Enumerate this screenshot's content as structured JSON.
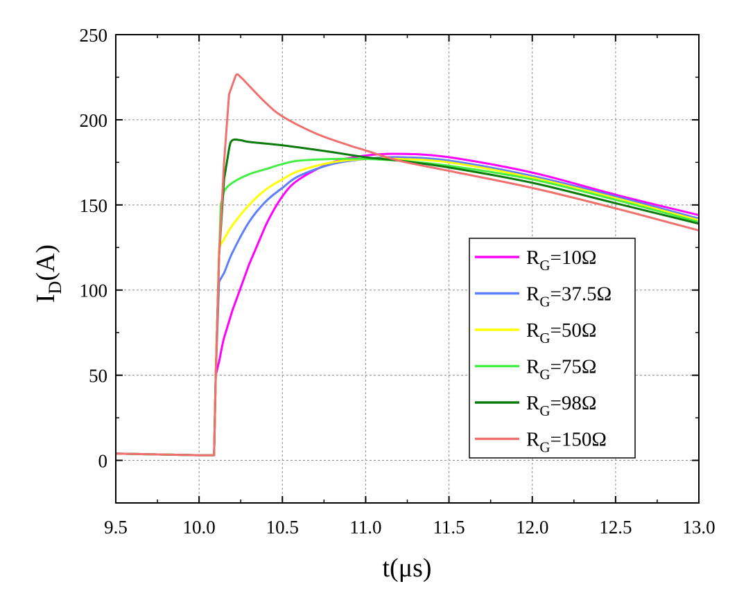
{
  "chart_data": {
    "type": "line",
    "xlabel": "t(μs)",
    "ylabel_main": "I",
    "ylabel_sub": "D",
    "ylabel_tail": "(A)",
    "xlim": [
      9.5,
      13.0
    ],
    "ylim": [
      -25,
      250
    ],
    "xticks": [
      "9.5",
      "10.0",
      "10.5",
      "11.0",
      "11.5",
      "12.0",
      "12.5",
      "13.0"
    ],
    "yticks": [
      "0",
      "50",
      "100",
      "150",
      "200",
      "250"
    ],
    "grid": true,
    "legend_position": "bottom-right",
    "series": [
      {
        "label_main": "R",
        "label_sub": "G",
        "label_tail": "=10Ω",
        "color": "#ff00ff",
        "x": [
          9.5,
          10.0,
          10.09,
          10.1,
          10.12,
          10.15,
          10.2,
          10.3,
          10.4,
          10.5,
          10.6,
          10.8,
          11.0,
          11.2,
          11.5,
          12.0,
          12.5,
          13.0
        ],
        "y": [
          4,
          3,
          3,
          50,
          58,
          72,
          88,
          115,
          138,
          155,
          165,
          175,
          179,
          180,
          178,
          169,
          156,
          144
        ]
      },
      {
        "label_main": "R",
        "label_sub": "G",
        "label_tail": "=37.5Ω",
        "color": "#5b7fff",
        "x": [
          9.5,
          10.0,
          10.09,
          10.1,
          10.12,
          10.15,
          10.2,
          10.3,
          10.4,
          10.5,
          10.6,
          10.8,
          11.0,
          11.2,
          11.5,
          12.0,
          12.5,
          13.0
        ],
        "y": [
          4,
          3,
          3,
          50,
          105,
          110,
          122,
          140,
          152,
          160,
          167,
          174,
          177,
          178,
          176,
          167,
          155,
          142
        ]
      },
      {
        "label_main": "R",
        "label_sub": "G",
        "label_tail": "=50Ω",
        "color": "#ffff00",
        "x": [
          9.5,
          10.0,
          10.09,
          10.1,
          10.12,
          10.15,
          10.2,
          10.3,
          10.4,
          10.5,
          10.6,
          10.8,
          11.0,
          11.2,
          11.5,
          12.0,
          12.5,
          13.0
        ],
        "y": [
          4,
          3,
          3,
          50,
          125,
          130,
          138,
          150,
          159,
          165,
          170,
          175,
          177,
          177,
          175,
          166,
          154,
          141
        ]
      },
      {
        "label_main": "R",
        "label_sub": "G",
        "label_tail": "=75Ω",
        "color": "#44ee44",
        "x": [
          9.5,
          10.0,
          10.09,
          10.1,
          10.12,
          10.13,
          10.15,
          10.2,
          10.3,
          10.4,
          10.5,
          10.6,
          10.8,
          11.0,
          11.2,
          11.5,
          12.0,
          12.5,
          13.0
        ],
        "y": [
          4,
          3,
          3,
          50,
          120,
          150,
          158,
          163,
          168,
          171,
          174,
          176,
          177,
          177,
          176,
          173,
          165,
          153,
          140
        ]
      },
      {
        "label_main": "R",
        "label_sub": "G",
        "label_tail": "=98Ω",
        "color": "#0a7a0a",
        "x": [
          9.5,
          10.0,
          10.09,
          10.1,
          10.12,
          10.15,
          10.18,
          10.2,
          10.25,
          10.3,
          10.5,
          10.8,
          11.0,
          11.2,
          11.5,
          12.0,
          12.5,
          13.0
        ],
        "y": [
          4,
          3,
          3,
          50,
          120,
          165,
          183,
          188,
          188,
          187,
          185,
          181,
          178,
          176,
          172,
          163,
          151,
          139
        ]
      },
      {
        "label_main": "R",
        "label_sub": "G",
        "label_tail": "=150Ω",
        "color": "#f07070",
        "x": [
          9.5,
          10.0,
          10.09,
          10.1,
          10.12,
          10.15,
          10.18,
          10.22,
          10.25,
          10.3,
          10.4,
          10.5,
          10.7,
          10.9,
          11.0,
          11.2,
          11.5,
          12.0,
          12.5,
          13.0
        ],
        "y": [
          4,
          3,
          3,
          50,
          120,
          175,
          215,
          226,
          225,
          220,
          210,
          202,
          192,
          185,
          182,
          176,
          170,
          160,
          148,
          135
        ]
      }
    ]
  }
}
